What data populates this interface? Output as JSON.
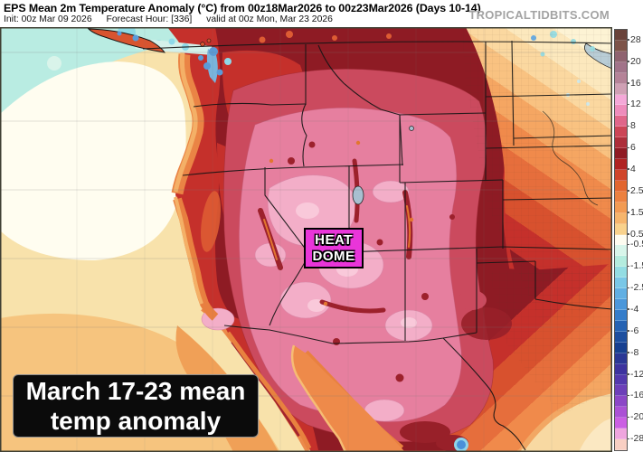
{
  "header": {
    "title": "EPS Mean 2m Temperature Anomaly (°C) from 00z18Mar2026 to 00z23Mar2026 (Days 10-14)",
    "init": "Init: 00z Mar 09 2026",
    "forecast_hour": "Forecast Hour: [336]",
    "valid": "valid at 00z Mon, Mar 23 2026",
    "watermark": "TROPICALTIDBITS.COM"
  },
  "annotations": {
    "heat_dome": {
      "line1": "HEAT",
      "line2": "DOME",
      "box_color": "#e935d9"
    },
    "caption": {
      "line1": "March 17-23 mean",
      "line2": "temp anomaly",
      "bg": "#0b0b0b",
      "text_color": "#ffffff"
    }
  },
  "colorbar": {
    "units": "°C",
    "segments": [
      {
        "c": "#6a433a",
        "l": ""
      },
      {
        "c": "#7d5349",
        "l": "28"
      },
      {
        "c": "#8f6370",
        "l": ""
      },
      {
        "c": "#a17389",
        "l": "20"
      },
      {
        "c": "#b58398",
        "l": ""
      },
      {
        "c": "#cfa0b4",
        "l": "16"
      },
      {
        "c": "#f4a8d8",
        "l": ""
      },
      {
        "c": "#ee8cbc",
        "l": "12"
      },
      {
        "c": "#e0668a",
        "l": ""
      },
      {
        "c": "#cc4556",
        "l": "8"
      },
      {
        "c": "#ad2e3a",
        "l": ""
      },
      {
        "c": "#8f1b24",
        "l": "6"
      },
      {
        "c": "#b02322",
        "l": ""
      },
      {
        "c": "#d0452a",
        "l": "4"
      },
      {
        "c": "#e2662f",
        "l": ""
      },
      {
        "c": "#ec8140",
        "l": "2.5"
      },
      {
        "c": "#f29b53",
        "l": ""
      },
      {
        "c": "#f6b56c",
        "l": "1.5"
      },
      {
        "c": "#f9d28c",
        "l": ""
      },
      {
        "c": "#fefcf0",
        "l": "0.5"
      },
      {
        "c": "#d8f5ea",
        "l": "-0.5"
      },
      {
        "c": "#b4ecde",
        "l": ""
      },
      {
        "c": "#93dde3",
        "l": "-1.5"
      },
      {
        "c": "#79c7e7",
        "l": ""
      },
      {
        "c": "#61afe3",
        "l": "-2.5"
      },
      {
        "c": "#4b97da",
        "l": ""
      },
      {
        "c": "#357dca",
        "l": "-4"
      },
      {
        "c": "#2663b3",
        "l": ""
      },
      {
        "c": "#1d4f9f",
        "l": "-6"
      },
      {
        "c": "#174090",
        "l": ""
      },
      {
        "c": "#2a3795",
        "l": "-8"
      },
      {
        "c": "#3d339f",
        "l": ""
      },
      {
        "c": "#5339ad",
        "l": "-12"
      },
      {
        "c": "#6d40b9",
        "l": ""
      },
      {
        "c": "#8c47c7",
        "l": "-16"
      },
      {
        "c": "#ab51d5",
        "l": ""
      },
      {
        "c": "#cb5fe3",
        "l": "-20"
      },
      {
        "c": "#efa5de",
        "l": ""
      },
      {
        "c": "#f8cfc3",
        "l": "-28"
      }
    ]
  }
}
